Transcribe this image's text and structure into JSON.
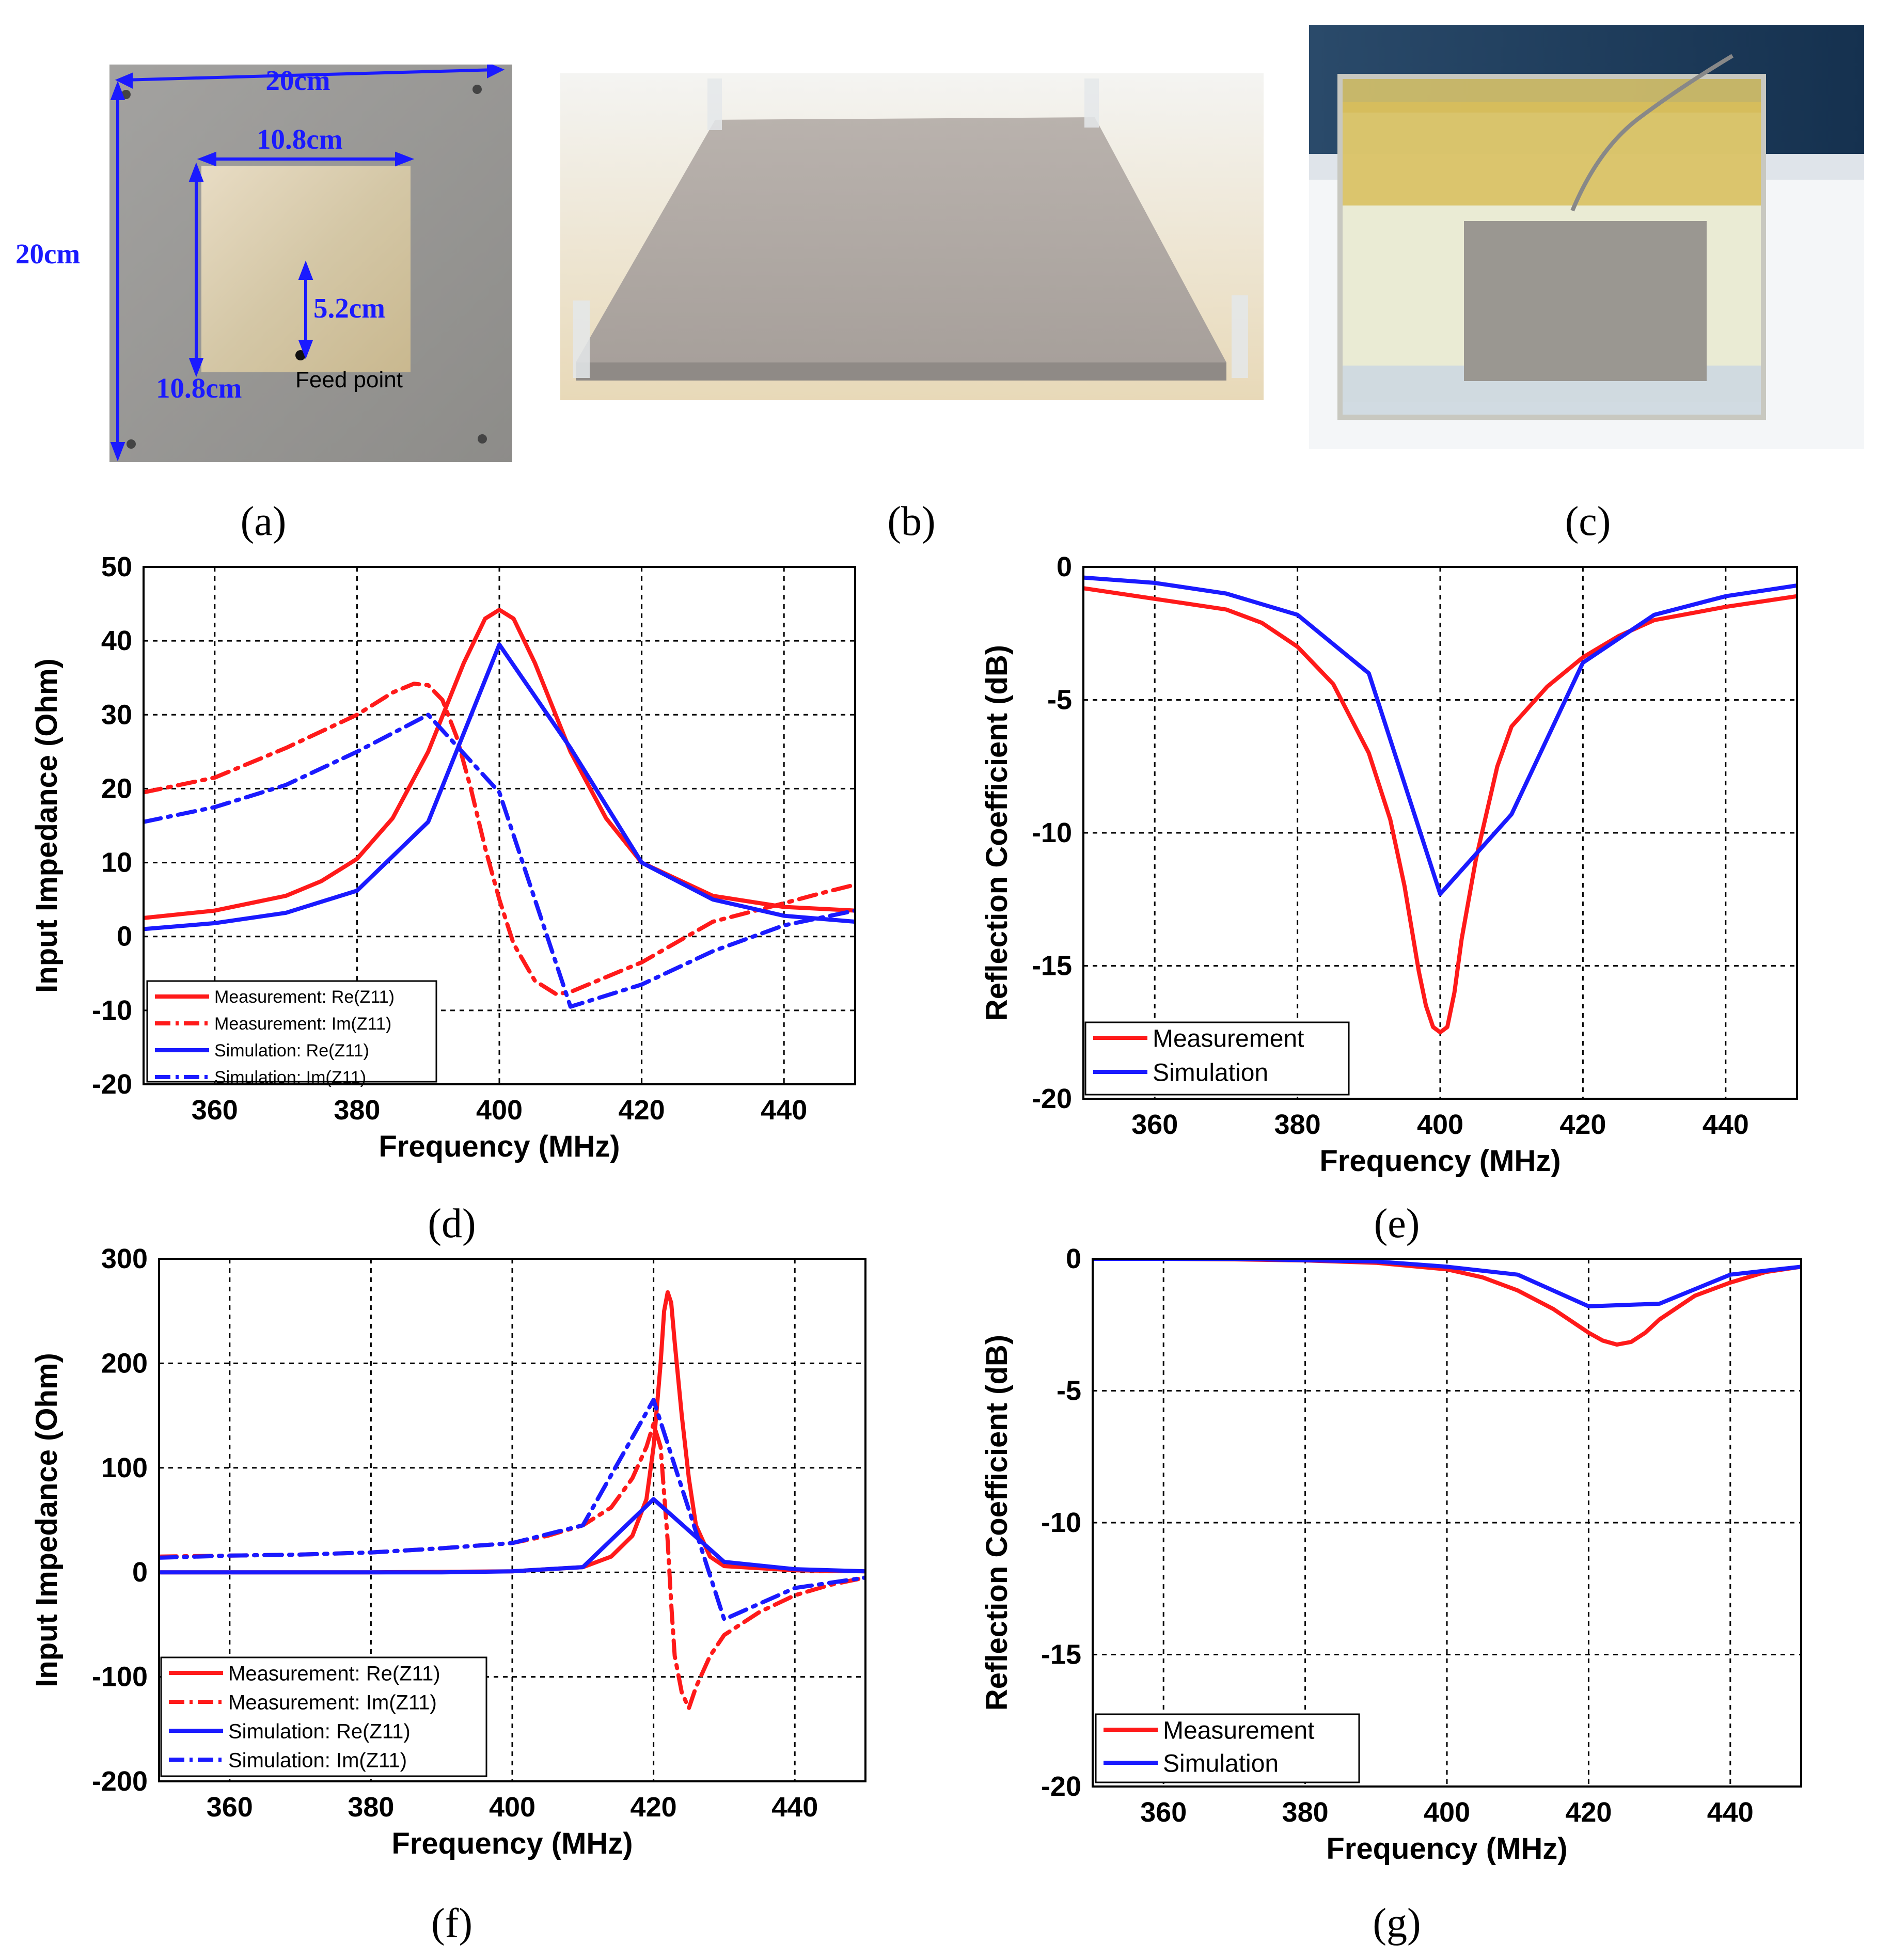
{
  "colors": {
    "measurement": "#ff1a1a",
    "simulation": "#1a1aff",
    "grid": "#000000",
    "dimension": "#1a1aff"
  },
  "captions": {
    "a": "(a)",
    "b": "(b)",
    "c": "(c)",
    "d": "(d)",
    "e": "(e)",
    "f": "(f)",
    "g": "(g)"
  },
  "photo_a": {
    "dim_top": "20cm",
    "dim_left": "20cm",
    "patch_top": "10.8cm",
    "patch_left": "10.8cm",
    "feed_offset": "5.2cm",
    "feed_label": "Feed point"
  },
  "chart_data": [
    {
      "id": "d",
      "type": "line",
      "xlabel": "Frequency (MHz)",
      "ylabel": "Input Impedance (Ohm)",
      "xlim": [
        350,
        450
      ],
      "ylim": [
        -20,
        50
      ],
      "xticks": [
        360,
        380,
        400,
        420,
        440
      ],
      "yticks": [
        -20,
        -10,
        0,
        10,
        20,
        30,
        40,
        50
      ],
      "grid": true,
      "legend_position": "bottom-left",
      "series": [
        {
          "name": "Measurement: Re(Z11)",
          "color": "measurement",
          "dash": "solid",
          "x": [
            350,
            360,
            370,
            375,
            380,
            385,
            390,
            395,
            398,
            400,
            402,
            405,
            410,
            415,
            420,
            430,
            440,
            450
          ],
          "y": [
            2.5,
            3.5,
            5.5,
            7.5,
            10.5,
            16,
            25,
            37,
            43,
            44.2,
            43,
            37,
            25,
            16,
            10,
            5.5,
            4,
            3.5
          ]
        },
        {
          "name": "Measurement: Im(Z11)",
          "color": "measurement",
          "dash": "dashdot",
          "x": [
            350,
            360,
            370,
            380,
            385,
            388,
            390,
            392,
            394,
            396,
            398,
            400,
            402,
            405,
            408,
            410,
            415,
            420,
            430,
            440,
            445,
            450
          ],
          "y": [
            19.5,
            21.5,
            25.5,
            30,
            33,
            34.2,
            34,
            32,
            27,
            20,
            12,
            5,
            -1,
            -6,
            -7.8,
            -7.5,
            -5.5,
            -3.5,
            2,
            4.5,
            5.8,
            7
          ]
        },
        {
          "name": "Simulation: Re(Z11)",
          "color": "simulation",
          "dash": "solid",
          "x": [
            350,
            360,
            370,
            380,
            390,
            400,
            410,
            420,
            430,
            440,
            450
          ],
          "y": [
            1,
            1.8,
            3.2,
            6.2,
            15.5,
            39.5,
            25.5,
            10,
            5,
            2.8,
            2
          ]
        },
        {
          "name": "Simulation: Im(Z11)",
          "color": "simulation",
          "dash": "dashdot",
          "x": [
            350,
            360,
            370,
            380,
            390,
            400,
            410,
            420,
            430,
            440,
            450
          ],
          "y": [
            15.5,
            17.5,
            20.5,
            25,
            30,
            19.5,
            -9.5,
            -6.5,
            -2,
            1.5,
            3.5
          ]
        }
      ]
    },
    {
      "id": "e",
      "type": "line",
      "xlabel": "Frequency (MHz)",
      "ylabel": "Reflection Coefficient (dB)",
      "xlim": [
        350,
        450
      ],
      "ylim": [
        -20,
        0
      ],
      "xticks": [
        360,
        380,
        400,
        420,
        440
      ],
      "yticks": [
        -20,
        -15,
        -10,
        -5,
        0
      ],
      "grid": true,
      "legend_position": "bottom-left",
      "series": [
        {
          "name": "Measurement",
          "color": "measurement",
          "dash": "solid",
          "x": [
            350,
            360,
            370,
            375,
            380,
            385,
            390,
            393,
            395,
            397,
            398,
            399,
            400,
            401,
            402,
            403,
            405,
            408,
            410,
            415,
            420,
            425,
            430,
            440,
            450
          ],
          "y": [
            -0.8,
            -1.2,
            -1.6,
            -2.1,
            -3.0,
            -4.4,
            -7.0,
            -9.5,
            -12,
            -15.2,
            -16.5,
            -17.3,
            -17.5,
            -17.3,
            -16,
            -14,
            -11,
            -7.5,
            -6,
            -4.5,
            -3.4,
            -2.6,
            -2.0,
            -1.5,
            -1.1
          ]
        },
        {
          "name": "Simulation",
          "color": "simulation",
          "dash": "solid",
          "x": [
            350,
            360,
            370,
            380,
            390,
            400,
            410,
            420,
            430,
            440,
            450
          ],
          "y": [
            -0.4,
            -0.6,
            -1.0,
            -1.8,
            -4.0,
            -12.3,
            -9.3,
            -3.6,
            -1.8,
            -1.1,
            -0.7
          ]
        }
      ]
    },
    {
      "id": "f",
      "type": "line",
      "xlabel": "Frequency (MHz)",
      "ylabel": "Input Impedance (Ohm)",
      "xlim": [
        350,
        450
      ],
      "ylim": [
        -200,
        300
      ],
      "xticks": [
        360,
        380,
        400,
        420,
        440
      ],
      "yticks": [
        -200,
        -100,
        0,
        100,
        200,
        300
      ],
      "grid": true,
      "legend_position": "bottom-left",
      "series": [
        {
          "name": "Measurement: Re(Z11)",
          "color": "measurement",
          "dash": "solid",
          "x": [
            350,
            380,
            400,
            410,
            414,
            417,
            419,
            420,
            421,
            421.5,
            422,
            422.5,
            423,
            424,
            425,
            426,
            428,
            430,
            440,
            450
          ],
          "y": [
            0,
            0,
            1,
            5,
            15,
            35,
            70,
            120,
            200,
            250,
            268,
            258,
            220,
            150,
            90,
            45,
            15,
            6,
            2,
            1
          ]
        },
        {
          "name": "Measurement: Im(Z11)",
          "color": "measurement",
          "dash": "dashdot",
          "x": [
            350,
            360,
            370,
            380,
            390,
            400,
            405,
            410,
            414,
            417,
            419,
            420,
            421,
            422,
            422.5,
            423,
            424,
            425,
            426,
            428,
            430,
            435,
            440,
            445,
            450
          ],
          "y": [
            15,
            16,
            17,
            19,
            23,
            28,
            35,
            45,
            62,
            90,
            120,
            142,
            120,
            30,
            -30,
            -80,
            -115,
            -130,
            -110,
            -80,
            -60,
            -38,
            -22,
            -12,
            -5
          ]
        },
        {
          "name": "Simulation: Re(Z11)",
          "color": "simulation",
          "dash": "solid",
          "x": [
            350,
            360,
            370,
            380,
            390,
            400,
            410,
            420,
            430,
            440,
            450
          ],
          "y": [
            0,
            0,
            0,
            0,
            0,
            1,
            5,
            70,
            10,
            3,
            1
          ]
        },
        {
          "name": "Simulation: Im(Z11)",
          "color": "simulation",
          "dash": "dashdot",
          "x": [
            350,
            360,
            370,
            380,
            390,
            400,
            410,
            420,
            430,
            440,
            450
          ],
          "y": [
            14,
            16,
            17,
            19,
            23,
            28,
            45,
            165,
            -45,
            -15,
            -5
          ]
        }
      ]
    },
    {
      "id": "g",
      "type": "line",
      "xlabel": "Frequency (MHz)",
      "ylabel": "Reflection Coefficient (dB)",
      "xlim": [
        350,
        450
      ],
      "ylim": [
        -20,
        0
      ],
      "xticks": [
        360,
        380,
        400,
        420,
        440
      ],
      "yticks": [
        -20,
        -15,
        -10,
        -5,
        0
      ],
      "grid": true,
      "legend_position": "bottom-left",
      "series": [
        {
          "name": "Measurement",
          "color": "measurement",
          "dash": "solid",
          "x": [
            350,
            360,
            370,
            380,
            390,
            400,
            405,
            410,
            415,
            420,
            422,
            424,
            426,
            428,
            430,
            435,
            440,
            445,
            450
          ],
          "y": [
            0,
            0,
            -0.02,
            -0.06,
            -0.15,
            -0.4,
            -0.7,
            -1.2,
            -1.9,
            -2.8,
            -3.1,
            -3.25,
            -3.15,
            -2.8,
            -2.3,
            -1.4,
            -0.9,
            -0.5,
            -0.3
          ]
        },
        {
          "name": "Simulation",
          "color": "simulation",
          "dash": "solid",
          "x": [
            350,
            360,
            370,
            380,
            390,
            400,
            410,
            420,
            430,
            440,
            450
          ],
          "y": [
            0,
            0,
            0,
            -0.05,
            -0.1,
            -0.3,
            -0.6,
            -1.8,
            -1.7,
            -0.6,
            -0.3
          ]
        }
      ]
    }
  ]
}
